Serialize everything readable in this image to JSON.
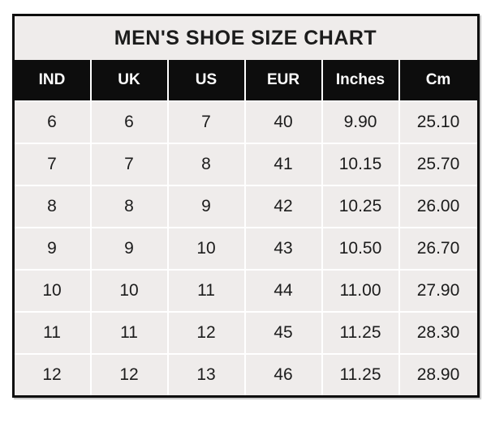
{
  "title": "MEN'S SHOE SIZE CHART",
  "chart_data": {
    "type": "table",
    "title": "MEN'S SHOE SIZE CHART",
    "columns": [
      "IND",
      "UK",
      "US",
      "EUR",
      "Inches",
      "Cm"
    ],
    "rows": [
      [
        "6",
        "6",
        "7",
        "40",
        "9.90",
        "25.10"
      ],
      [
        "7",
        "7",
        "8",
        "41",
        "10.15",
        "25.70"
      ],
      [
        "8",
        "8",
        "9",
        "42",
        "10.25",
        "26.00"
      ],
      [
        "9",
        "9",
        "10",
        "43",
        "10.50",
        "26.70"
      ],
      [
        "10",
        "10",
        "11",
        "44",
        "11.00",
        "27.90"
      ],
      [
        "11",
        "11",
        "12",
        "45",
        "11.25",
        "28.30"
      ],
      [
        "12",
        "12",
        "13",
        "46",
        "11.25",
        "28.90"
      ]
    ]
  },
  "colors": {
    "border": "#0d0d0d",
    "header_bg": "#0d0d0d",
    "header_text": "#ffffff",
    "cell_bg": "#efeceb",
    "title_bg": "#efeceb",
    "text": "#1c1c1c",
    "separator": "#ffffff",
    "page_bg": "#ffffff"
  }
}
